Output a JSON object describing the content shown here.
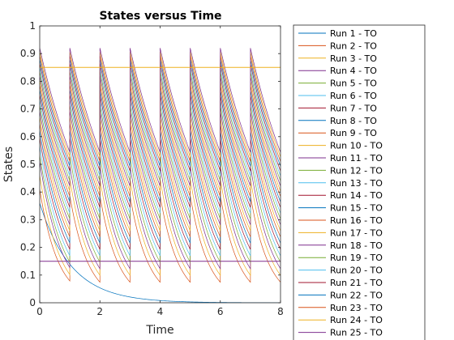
{
  "chart_data": {
    "type": "line",
    "title": "States versus Time",
    "xlabel": "Time",
    "ylabel": "States",
    "xlim": [
      0,
      8
    ],
    "ylim": [
      0,
      1
    ],
    "xticks": [
      "0",
      "2",
      "4",
      "6",
      "8"
    ],
    "yticks": [
      "0",
      "0.1",
      "0.2",
      "0.3",
      "0.4",
      "0.5",
      "0.6",
      "0.7",
      "0.8",
      "0.9",
      "1"
    ],
    "grid": false,
    "legend_position": "outside-right",
    "pulse_times": [
      0,
      1,
      2,
      3,
      4,
      5,
      6,
      7
    ],
    "reference_lines": [
      {
        "y": 0.85,
        "color": "#EDB120"
      },
      {
        "y": 0.15,
        "color": "#7E2F8E"
      }
    ],
    "run1_start": 0.36,
    "peak_range": [
      0.22,
      0.92
    ],
    "series": [
      {
        "name": "Run 1 - TO",
        "color": "#0072BD"
      },
      {
        "name": "Run 2 - TO",
        "color": "#D95319"
      },
      {
        "name": "Run 3 - TO",
        "color": "#EDB120"
      },
      {
        "name": "Run 4 - TO",
        "color": "#7E2F8E"
      },
      {
        "name": "Run 5 - TO",
        "color": "#77AC30"
      },
      {
        "name": "Run 6 - TO",
        "color": "#4DBEEE"
      },
      {
        "name": "Run 7 - TO",
        "color": "#A2142F"
      },
      {
        "name": "Run 8 - TO",
        "color": "#0072BD"
      },
      {
        "name": "Run 9 - TO",
        "color": "#D95319"
      },
      {
        "name": "Run 10 - TO",
        "color": "#EDB120"
      },
      {
        "name": "Run 11 - TO",
        "color": "#7E2F8E"
      },
      {
        "name": "Run 12 - TO",
        "color": "#77AC30"
      },
      {
        "name": "Run 13 - TO",
        "color": "#4DBEEE"
      },
      {
        "name": "Run 14 - TO",
        "color": "#A2142F"
      },
      {
        "name": "Run 15 - TO",
        "color": "#0072BD"
      },
      {
        "name": "Run 16 - TO",
        "color": "#D95319"
      },
      {
        "name": "Run 17 - TO",
        "color": "#EDB120"
      },
      {
        "name": "Run 18 - TO",
        "color": "#7E2F8E"
      },
      {
        "name": "Run 19 - TO",
        "color": "#77AC30"
      },
      {
        "name": "Run 20 - TO",
        "color": "#4DBEEE"
      },
      {
        "name": "Run 21 - TO",
        "color": "#A2142F"
      },
      {
        "name": "Run 22 - TO",
        "color": "#0072BD"
      },
      {
        "name": "Run 23 - TO",
        "color": "#D95319"
      },
      {
        "name": "Run 24 - TO",
        "color": "#EDB120"
      },
      {
        "name": "Run 25 - TO",
        "color": "#7E2F8E"
      }
    ]
  }
}
